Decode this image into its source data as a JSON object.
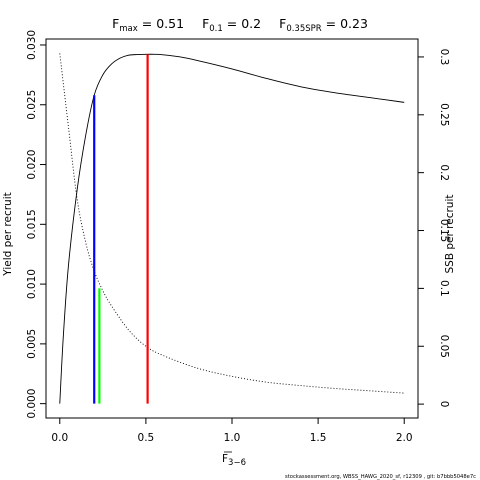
{
  "chart_data": {
    "type": "line",
    "title_parts": [
      {
        "main": "F",
        "sub": "max",
        "rest": " = 0.51"
      },
      {
        "main": "F",
        "sub": "0.1",
        "rest": " = 0.2"
      },
      {
        "main": "F",
        "sub": "0.35SPR",
        "rest": " = 0.23"
      }
    ],
    "xlabel": {
      "main": "F",
      "sub": "3−6"
    },
    "ylabel_left": "Yield per recruit",
    "ylabel_right": "SSB per recruit",
    "xlim": [
      0,
      2
    ],
    "ylim_left": [
      0,
      0.03
    ],
    "ylim_right": [
      0,
      0.31
    ],
    "x_ticks": [
      {
        "v": 0,
        "label": "0.0"
      },
      {
        "v": 0.5,
        "label": "0.5"
      },
      {
        "v": 1.0,
        "label": "1.0"
      },
      {
        "v": 1.5,
        "label": "1.5"
      },
      {
        "v": 2.0,
        "label": "2.0"
      }
    ],
    "y_ticks_left": [
      {
        "v": 0,
        "label": "0.000"
      },
      {
        "v": 0.005,
        "label": "0.005"
      },
      {
        "v": 0.01,
        "label": "0.010"
      },
      {
        "v": 0.015,
        "label": "0.015"
      },
      {
        "v": 0.02,
        "label": "0.020"
      },
      {
        "v": 0.025,
        "label": "0.025"
      },
      {
        "v": 0.03,
        "label": "0.030"
      }
    ],
    "y_ticks_right": [
      {
        "v": 0,
        "label": "0"
      },
      {
        "v": 0.05,
        "label": "0.05"
      },
      {
        "v": 0.1,
        "label": "0.1"
      },
      {
        "v": 0.15,
        "label": "0.15"
      },
      {
        "v": 0.2,
        "label": "0.2"
      },
      {
        "v": 0.25,
        "label": "0.25"
      },
      {
        "v": 0.3,
        "label": "0.3"
      }
    ],
    "series": [
      {
        "axis": "left",
        "style": "solid",
        "color": "#000000",
        "x": [
          0,
          0.02,
          0.05,
          0.1,
          0.15,
          0.2,
          0.25,
          0.3,
          0.35,
          0.4,
          0.45,
          0.5,
          0.55,
          0.6,
          0.7,
          0.8,
          1.0,
          1.2,
          1.4,
          1.6,
          1.8,
          2.0
        ],
        "y": [
          0,
          0.0055,
          0.0115,
          0.0178,
          0.0224,
          0.0258,
          0.0275,
          0.0284,
          0.0289,
          0.02915,
          0.0292,
          0.02922,
          0.02922,
          0.02918,
          0.029,
          0.0287,
          0.028,
          0.0272,
          0.0265,
          0.026,
          0.0256,
          0.0252
        ]
      },
      {
        "axis": "right",
        "style": "dotted",
        "color": "#000000",
        "x": [
          0,
          0.05,
          0.1,
          0.15,
          0.2,
          0.25,
          0.3,
          0.4,
          0.5,
          0.6,
          0.8,
          1.0,
          1.2,
          1.4,
          1.6,
          1.8,
          2.0
        ],
        "y": [
          0.303,
          0.24,
          0.178,
          0.14,
          0.115,
          0.098,
          0.085,
          0.064,
          0.05,
          0.042,
          0.031,
          0.024,
          0.019,
          0.016,
          0.0135,
          0.0115,
          0.0095
        ]
      }
    ],
    "vlines": [
      {
        "x": 0.2,
        "y": 0.0258,
        "axis": "left",
        "color": "#0000ff"
      },
      {
        "x": 0.23,
        "y": 0.1,
        "axis": "right",
        "color": "#00ff00"
      },
      {
        "x": 0.51,
        "y": 0.02922,
        "axis": "left",
        "color": "#ff0000"
      }
    ],
    "legend": "none",
    "grid": false
  },
  "footer": "stockassessment.org, WBSS_HAWG_2020_sf, r12309 , git: b7bbb5048e7c"
}
